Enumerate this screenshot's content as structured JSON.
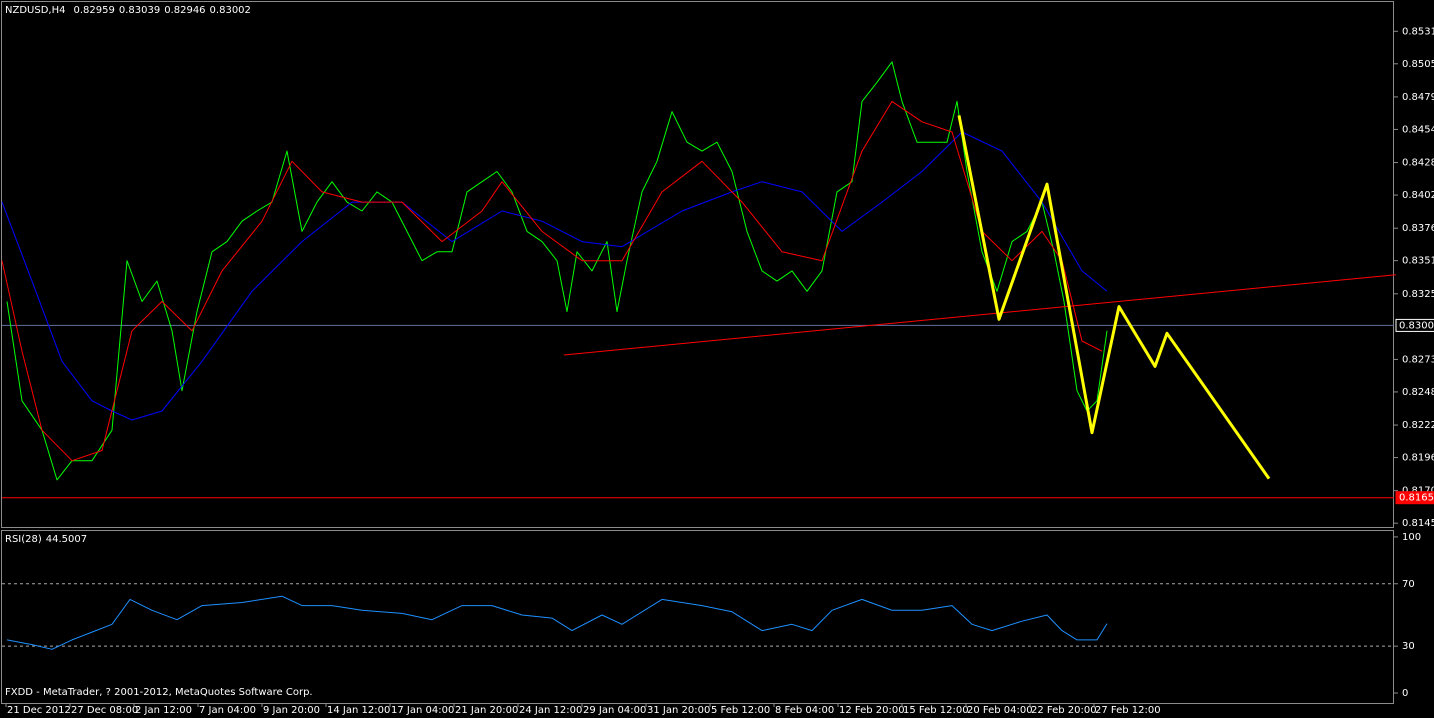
{
  "footer": "FXDD - MetaTrader, ? 2001-2012, MetaQuotes Software Corp.",
  "chart_data": [
    {
      "type": "line",
      "title": "NZDUSD,H4",
      "ohlc": [
        0.82959,
        0.83039,
        0.82946,
        0.83002
      ],
      "xlim": [
        0,
        348
      ],
      "ylim": [
        0.8142,
        0.8554
      ],
      "yticks": [
        {
          "value": 0.8531,
          "label": "0.85310"
        },
        0.85055,
        0.84795,
        {
          "value": 0.8454,
          "label": "0.84540"
        },
        {
          "value": 0.8428,
          "label": "0.84280"
        },
        0.84025,
        0.83765,
        {
          "value": 0.8351,
          "label": "0.83510"
        },
        {
          "value": 0.8325,
          "label": "0.83250"
        },
        0.82735,
        {
          "value": 0.8248,
          "label": "0.82480"
        },
        {
          "value": 0.8222,
          "label": "0.82220"
        },
        0.81965,
        0.81705,
        {
          "value": 0.8145,
          "label": "0.81450"
        }
      ],
      "price_lines": [
        {
          "value": 0.83002,
          "color": "#5f6f9f"
        },
        {
          "value": {
            "value": 0.8165,
            "label": "0.81650"
          },
          "color": "#ff0000"
        }
      ],
      "series": [
        {
          "color": "#00ff00",
          "x": [
            1.25,
            5,
            10,
            13.75,
            17.5,
            22.5,
            27.5,
            31.25,
            35,
            38.75,
            42.5,
            45,
            48.75,
            52.5,
            56.25,
            60,
            63.75,
            67.5,
            71.25,
            75,
            78.75,
            82.5,
            86.25,
            90,
            93.75,
            97.5,
            101.25,
            105,
            108.75,
            112.5,
            116.25,
            120,
            123.75,
            127.5,
            131.25,
            135,
            138.75,
            141.25,
            143.75,
            147.5,
            151.25,
            153.75,
            156.25,
            160,
            163.75,
            167.5,
            171.25,
            175,
            178.75,
            182.5,
            186.25,
            190,
            193.75,
            197.5,
            201.25,
            205,
            208.75,
            212.5,
            215,
            218.75,
            222.5,
            225,
            228.75,
            232.5,
            236.25,
            238.75,
            241.25,
            245,
            248.75,
            252.5,
            256.25,
            260,
            263,
            265.5,
            268.75,
            271.25,
            273.75,
            276.25
          ],
          "values": [
            0.8319,
            0.8241,
            0.8218,
            0.8179,
            0.8194,
            0.8194,
            0.8218,
            0.8351,
            0.8319,
            0.8335,
            0.8296,
            0.8249,
            0.8311,
            0.8358,
            0.8366,
            0.8382,
            0.839,
            0.8397,
            0.8437,
            0.8374,
            0.8397,
            0.8413,
            0.8397,
            0.839,
            0.8405,
            0.8397,
            0.8374,
            0.8351,
            0.8358,
            0.8358,
            0.8405,
            0.8413,
            0.8421,
            0.8405,
            0.8374,
            0.8366,
            0.8351,
            0.8311,
            0.8358,
            0.8343,
            0.8366,
            0.8311,
            0.8351,
            0.8405,
            0.8429,
            0.8468,
            0.8444,
            0.8437,
            0.8444,
            0.8421,
            0.8374,
            0.8343,
            0.8335,
            0.8343,
            0.8327,
            0.8343,
            0.8405,
            0.8413,
            0.8476,
            0.8491,
            0.8507,
            0.8476,
            0.8444,
            0.8444,
            0.8444,
            0.8476,
            0.8421,
            0.8358,
            0.8327,
            0.8366,
            0.8374,
            0.8397,
            0.8358,
            0.8319,
            0.8249,
            0.8233,
            0.8241,
            0.8296
          ]
        },
        {
          "color": "#0000ff",
          "x": [
            0,
            7.5,
            15,
            22.5,
            27.5,
            32.5,
            40,
            50,
            62.5,
            75,
            87.5,
            100,
            112.5,
            125,
            135,
            145,
            155,
            170,
            182.5,
            190,
            200,
            210,
            220,
            230,
            240,
            250,
            260,
            270,
            276.25
          ],
          "values": [
            0.8397,
            0.8335,
            0.8272,
            0.8241,
            0.8233,
            0.8226,
            0.8233,
            0.8272,
            0.8327,
            0.8366,
            0.8397,
            0.8397,
            0.8366,
            0.839,
            0.8382,
            0.8366,
            0.8362,
            0.839,
            0.8405,
            0.8413,
            0.8405,
            0.8374,
            0.8397,
            0.8421,
            0.8452,
            0.8437,
            0.8397,
            0.8343,
            0.8327
          ]
        },
        {
          "color": "#ff0000",
          "x": [
            0,
            5,
            10,
            17.5,
            25,
            32.5,
            40,
            47.5,
            55,
            65,
            72.5,
            80,
            90,
            100,
            110,
            120,
            125,
            135,
            145,
            155,
            165,
            175,
            185,
            195,
            205,
            215,
            222.5,
            230,
            237.5,
            245,
            252.5,
            260,
            265,
            270,
            275
          ],
          "values": [
            0.8351,
            0.828,
            0.8218,
            0.8194,
            0.8202,
            0.8296,
            0.8319,
            0.8296,
            0.8343,
            0.8382,
            0.8429,
            0.8405,
            0.8397,
            0.8397,
            0.8366,
            0.839,
            0.8413,
            0.8374,
            0.8351,
            0.8351,
            0.8405,
            0.8429,
            0.8397,
            0.8358,
            0.8351,
            0.8437,
            0.8476,
            0.846,
            0.8452,
            0.8374,
            0.8351,
            0.8374,
            0.8351,
            0.8288,
            0.828
          ]
        }
      ],
      "trendline": {
        "color": "#ff0000",
        "x": [
          140.5,
          348.5
        ],
        "values": [
          0.8277,
          0.834
        ]
      },
      "projection": {
        "color": "#ffff00",
        "x": [
          239.25,
          249.25,
          261.25,
          272.5,
          279.25,
          288.25,
          291.25,
          316.75
        ],
        "values": [
          0.8465,
          0.8305,
          0.8411,
          0.8216,
          0.8315,
          0.8268,
          0.8294,
          0.818
        ]
      }
    },
    {
      "type": "line",
      "title": "RSI(28)",
      "last": 44.5007,
      "xlim": [
        0,
        348
      ],
      "ylim": [
        -6.4,
        103.8
      ],
      "yticks": [
        100,
        70,
        30,
        0
      ],
      "levels": [
        70,
        30
      ],
      "xticks": [
        {
          "value": 1,
          "label": "21 Dec 2012"
        },
        {
          "value": 17,
          "label": "27 Dec 08:00"
        },
        {
          "value": 33,
          "label": "2 Jan 12:00"
        },
        {
          "value": 49,
          "label": "7 Jan 04:00"
        },
        {
          "value": 65,
          "label": "9 Jan 20:00"
        },
        {
          "value": 81,
          "label": "14 Jan 12:00"
        },
        {
          "value": 97,
          "label": "17 Jan 04:00"
        },
        {
          "value": 113,
          "label": "21 Jan 20:00"
        },
        {
          "value": 129,
          "label": "24 Jan 12:00"
        },
        {
          "value": 145,
          "label": "29 Jan 04:00"
        },
        {
          "value": 161,
          "label": "31 Jan 20:00"
        },
        {
          "value": 177,
          "label": "5 Feb 12:00"
        },
        {
          "value": 193,
          "label": "8 Feb 04:00"
        },
        {
          "value": 209,
          "label": "12 Feb 20:00"
        },
        {
          "value": 225,
          "label": "15 Feb 12:00"
        },
        {
          "value": 241,
          "label": "20 Feb 04:00"
        },
        {
          "value": 257,
          "label": "22 Feb 20:00"
        },
        {
          "value": 273,
          "label": "27 Feb 12:00"
        }
      ],
      "series": [
        {
          "color": "#1e90ff",
          "x": [
            1.25,
            7.5,
            12.5,
            17.5,
            22.5,
            27.5,
            32,
            37.5,
            43.75,
            50,
            60,
            70,
            75,
            82.5,
            90,
            100,
            107.5,
            115,
            122.5,
            130,
            137.5,
            142.5,
            150,
            155,
            165,
            175,
            182.5,
            190,
            197.5,
            202.5,
            207.5,
            215,
            222.5,
            230,
            237.5,
            242.5,
            247.5,
            255,
            261.25,
            265,
            268.75,
            273.75,
            276.25
          ],
          "values": [
            34,
            31,
            28,
            34,
            39,
            44,
            60,
            53,
            47,
            56,
            58,
            62,
            56,
            56,
            53,
            51,
            47,
            56,
            56,
            50,
            48,
            40,
            50,
            44,
            60,
            56,
            52,
            40,
            44,
            40,
            53,
            60,
            53,
            53,
            56,
            44,
            40,
            46,
            50,
            40,
            34,
            34,
            44.5007
          ]
        }
      ]
    }
  ]
}
